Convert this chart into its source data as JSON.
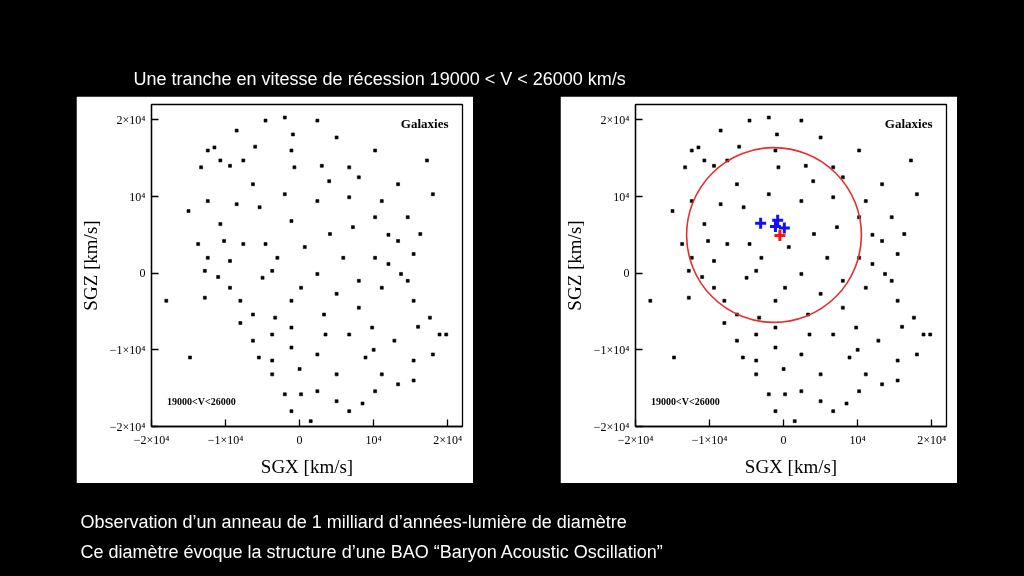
{
  "chart_data": [
    {
      "type": "scatter",
      "title": "Une tranche en vitesse de récession 19000 < V < 26000 km/s",
      "xlabel": "SGX [km/s]",
      "ylabel": "SGZ [km/s]",
      "xlim": [
        -20000,
        22000
      ],
      "ylim": [
        -20000,
        22000
      ],
      "xticks": [
        {
          "value": -20000,
          "label": "−2×10⁴"
        },
        {
          "value": -10000,
          "label": "−1×10⁴"
        },
        0,
        {
          "value": 10000,
          "label": "10⁴"
        },
        {
          "value": 20000,
          "label": "2×10⁴"
        }
      ],
      "yticks": [
        {
          "value": -20000,
          "label": "−2×10⁴"
        },
        {
          "value": -10000,
          "label": "−1×10⁴"
        },
        0,
        {
          "value": 10000,
          "label": "10⁴"
        },
        {
          "value": 20000,
          "label": "2×10⁴"
        }
      ],
      "grid": false,
      "marker": "square",
      "annotations": [
        "Galaxies",
        "19000<V<26000",
        "Observation d’un anneau de 1 milliard d’années-lumière de diamètre",
        "Ce diamètre évoque la structure d’une BAO “Baryon Acoustic Oscillation”"
      ],
      "series": [
        {
          "color": "#000000",
          "x": [
            -9400,
            -10700,
            -7600,
            -11500,
            -1100,
            -900,
            -700,
            -2000,
            -4600,
            2400,
            5000,
            8000,
            6700,
            6700,
            10200,
            11100,
            4100,
            -1100,
            -2000,
            -6300,
            -10700,
            -10200,
            -12400,
            -12800,
            -9400,
            -8000,
            -6300,
            -3300,
            -3700,
            -6300,
            -3700,
            -3700,
            200,
            2400,
            5000,
            10200,
            13300,
            8900,
            6700,
            8000,
            10200,
            12000,
            14600,
            17600,
            18900,
            15400,
            2400,
            -3700,
            700,
            5000,
            200,
            3300,
            -1100,
            11100,
            13300,
            15400,
            2400,
            -5400,
            -7600,
            -4600,
            2400,
            -1100,
            12800,
            15400,
            11100,
            6700,
            1500,
            -1100,
            -2000,
            15400,
            18000,
            -12800,
            -13700,
            -12400,
            -13300,
            -12400,
            -8500,
            10200,
            13300,
            14600,
            16300,
            13700,
            19800,
            5900,
            7200,
            -5000,
            -9400,
            9800,
            -1100,
            5000,
            -15000,
            -18000,
            -14800,
            17200,
            18000,
            -6000,
            3000,
            -3000,
            8000,
            -8000,
            10000,
            16000,
            -5500,
            3500,
            8500,
            -11000,
            12000,
            4000,
            -8500,
            0
          ],
          "values": [
            14000,
            14700,
            14700,
            16400,
            16000,
            18100,
            13800,
            20300,
            19900,
            19900,
            17700,
            12500,
            13800,
            9900,
            7300,
            9400,
            5100,
            6800,
            10300,
            11600,
            6400,
            4200,
            2000,
            300,
            -1900,
            -3600,
            -5400,
            -5800,
            -8000,
            -8800,
            -11400,
            -13200,
            -15800,
            -15400,
            -16700,
            -15400,
            -14500,
            -11000,
            -8000,
            -4500,
            2000,
            1200,
            -1000,
            -5800,
            -8000,
            -3600,
            -100,
            300,
            3400,
            -2700,
            -1900,
            -5400,
            -3600,
            -1900,
            4200,
            2500,
            9400,
            8600,
            3800,
            3800,
            -10600,
            -9700,
            -8800,
            -11400,
            -13200,
            -18000,
            -19300,
            -18000,
            -15800,
            -14000,
            -10600,
            -3200,
            3800,
            9400,
            13800,
            16000,
            18600,
            16000,
            11600,
            7300,
            5100,
            -100,
            -8000,
            2000,
            6000,
            -600,
            1600,
            -7100,
            -7100,
            -13200,
            8100,
            -3600,
            -11000,
            14700,
            10300,
            16500,
            14000,
            2000,
            -1000,
            -6500,
            -10000,
            -7000,
            -11000,
            -8000,
            -17000,
            -500,
            5000,
            12000,
            9000,
            -12500
          ]
        }
      ]
    },
    {
      "type": "scatter",
      "xlabel": "SGX [km/s]",
      "ylabel": "SGZ [km/s]",
      "xlim": [
        -20000,
        22000
      ],
      "ylim": [
        -20000,
        22000
      ],
      "xticks": [
        {
          "value": -20000,
          "label": "−2×10⁴"
        },
        {
          "value": -10000,
          "label": "−1×10⁴"
        },
        0,
        {
          "value": 10000,
          "label": "10⁴"
        },
        {
          "value": 20000,
          "label": "2×10⁴"
        }
      ],
      "yticks": [
        {
          "value": -20000,
          "label": "−2×10⁴"
        },
        {
          "value": -10000,
          "label": "−1×10⁴"
        },
        0,
        {
          "value": 10000,
          "label": "10⁴"
        },
        {
          "value": 20000,
          "label": "2×10⁴"
        }
      ],
      "grid": false,
      "marker": "square",
      "annotations": [
        "Galaxies",
        "19000<V<26000"
      ],
      "series": [
        {
          "color": "#000000",
          "x": [
            -9400,
            -10700,
            -7600,
            -11500,
            -1100,
            -900,
            -700,
            -2000,
            -4600,
            2400,
            5000,
            8000,
            6700,
            6700,
            10200,
            11100,
            4100,
            -2000,
            -6300,
            -10700,
            -10200,
            -12400,
            -12800,
            -9400,
            -8000,
            -6300,
            -3300,
            -3700,
            -6300,
            -3700,
            -3700,
            200,
            2400,
            5000,
            10200,
            13300,
            8900,
            6700,
            8000,
            10200,
            12000,
            14600,
            17600,
            18900,
            15400,
            2400,
            -3700,
            700,
            5000,
            200,
            3300,
            -1100,
            11100,
            13300,
            15400,
            2400,
            -5400,
            -7600,
            -4600,
            2400,
            -1100,
            12800,
            15400,
            11100,
            6700,
            1500,
            -1100,
            -2000,
            15400,
            18000,
            -12800,
            -13700,
            -12400,
            -13300,
            -12400,
            -8500,
            10200,
            13300,
            14600,
            16300,
            13700,
            19800,
            5900,
            7200,
            -5000,
            -9400,
            9800,
            -1100,
            5000,
            -15000,
            -18000,
            -14800,
            17200,
            18000,
            -6000,
            3000,
            -3000,
            8000,
            -8000,
            10000,
            16000,
            -5500,
            3500,
            8500,
            -11000,
            12000,
            4000,
            -8500,
            0
          ],
          "values": [
            14000,
            14700,
            14700,
            16400,
            16000,
            18100,
            13800,
            20300,
            19900,
            19900,
            17700,
            12500,
            13800,
            9900,
            7300,
            9400,
            5100,
            10300,
            11600,
            6400,
            4200,
            2000,
            300,
            -1900,
            -3600,
            -5400,
            -5800,
            -8000,
            -8800,
            -11400,
            -13200,
            -15800,
            -15400,
            -16700,
            -15400,
            -14500,
            -11000,
            -8000,
            -4500,
            2000,
            1200,
            -1000,
            -5800,
            -8000,
            -3600,
            -100,
            300,
            3400,
            -2700,
            -1900,
            -5400,
            -3600,
            -1900,
            4200,
            2500,
            9400,
            8600,
            3800,
            3800,
            -10600,
            -9700,
            -8800,
            -11400,
            -13200,
            -18000,
            -19300,
            -18000,
            -15800,
            -14000,
            -10600,
            -3200,
            3800,
            9400,
            13800,
            16000,
            18600,
            16000,
            11600,
            7300,
            5100,
            -100,
            -8000,
            2000,
            6000,
            -600,
            1600,
            -7100,
            -7100,
            -13200,
            8100,
            -3600,
            -11000,
            14700,
            10300,
            16500,
            14000,
            2000,
            -1000,
            -6500,
            -10000,
            -7000,
            -11000,
            -8000,
            -17000,
            -500,
            5000,
            12000,
            9000,
            -12500
          ]
        },
        {
          "color": "#1010ff",
          "marker": "cross",
          "x": [
            -3100,
            -800,
            -1100,
            100
          ],
          "values": [
            6500,
            6900,
            6100,
            5900
          ]
        },
        {
          "color": "#ff1010",
          "marker": "cross",
          "x": [
            -500
          ],
          "values": [
            4900
          ]
        }
      ]
    }
  ]
}
